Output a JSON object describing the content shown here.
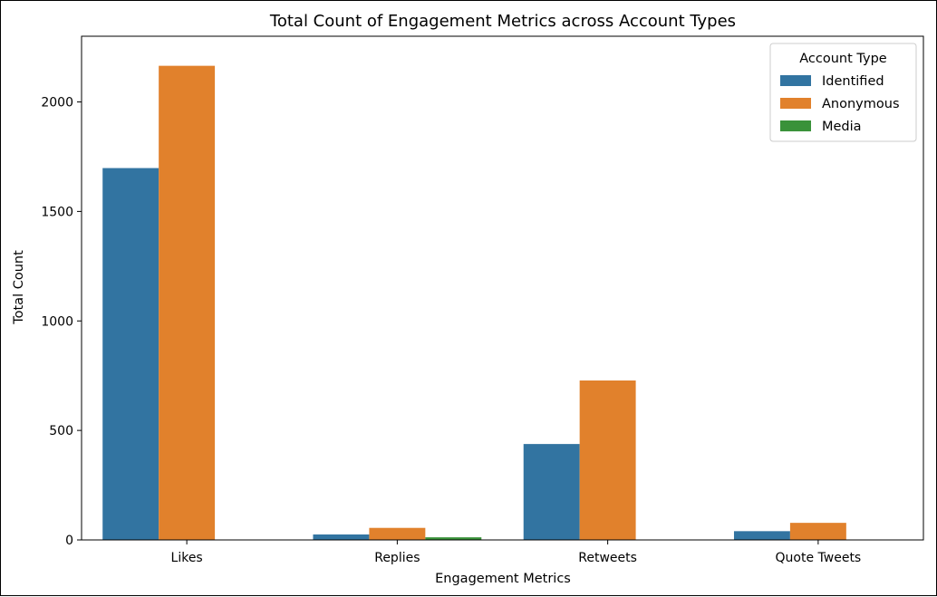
{
  "chart_data": {
    "type": "bar",
    "title": "Total Count of Engagement Metrics across Account Types",
    "xlabel": "Engagement Metrics",
    "ylabel": "Total Count",
    "categories": [
      "Likes",
      "Replies",
      "Retweets",
      "Quote Tweets"
    ],
    "series": [
      {
        "name": "Identified",
        "color": "#3274a1",
        "values": [
          1698,
          25,
          438,
          40
        ]
      },
      {
        "name": "Anonymous",
        "color": "#e1812c",
        "values": [
          2165,
          55,
          728,
          78
        ]
      },
      {
        "name": "Media",
        "color": "#3a923a",
        "values": [
          0,
          12,
          0,
          0
        ]
      }
    ],
    "ylim": [
      0,
      2300
    ],
    "yticks": [
      0,
      500,
      1000,
      1500,
      2000
    ],
    "grid": false,
    "legend": {
      "title": "Account Type",
      "placement": "top-right"
    }
  }
}
